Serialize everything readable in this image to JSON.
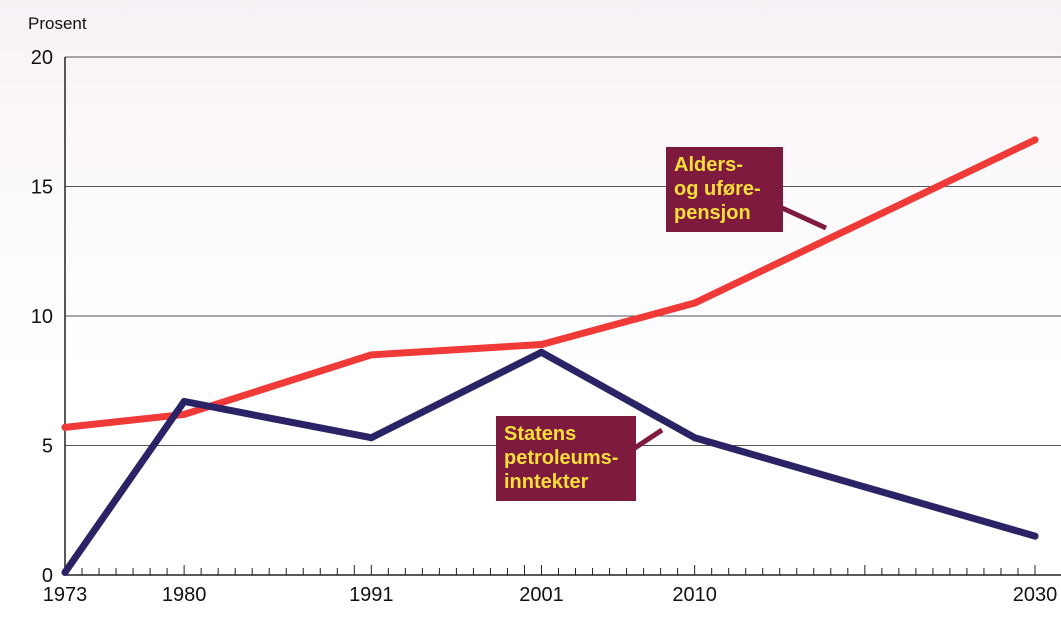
{
  "chart_data": {
    "type": "line",
    "title": "",
    "xlabel": "",
    "ylabel": "Prosent",
    "xlim": [
      1973,
      2031
    ],
    "ylim": [
      0,
      20
    ],
    "x_ticks": [
      1973,
      1980,
      1991,
      2001,
      2010,
      2030
    ],
    "y_ticks": [
      0,
      5,
      10,
      15,
      20
    ],
    "grid": true,
    "legend": "none",
    "series": [
      {
        "name": "Alders- og uførepensjon",
        "color": "#f03a37",
        "x": [
          1973,
          1980,
          1991,
          2001,
          2010,
          2030
        ],
        "y": [
          5.7,
          6.2,
          8.5,
          8.9,
          10.5,
          16.8
        ]
      },
      {
        "name": "Statens petroleumsinntekter",
        "color": "#2a2466",
        "x": [
          1973,
          1980,
          1991,
          2001,
          2010,
          2030
        ],
        "y": [
          0.1,
          6.7,
          5.3,
          8.6,
          5.3,
          1.5
        ]
      }
    ],
    "annotations": [
      {
        "lines": [
          "Alders-",
          "og uføre-",
          "pensjon"
        ],
        "series": 0,
        "background": "#7d1a3e",
        "text_color": "#f7df3b"
      },
      {
        "lines": [
          "Statens",
          "petroleums-",
          "inntekter"
        ],
        "series": 1,
        "background": "#7d1a3e",
        "text_color": "#f7df3b"
      }
    ]
  }
}
